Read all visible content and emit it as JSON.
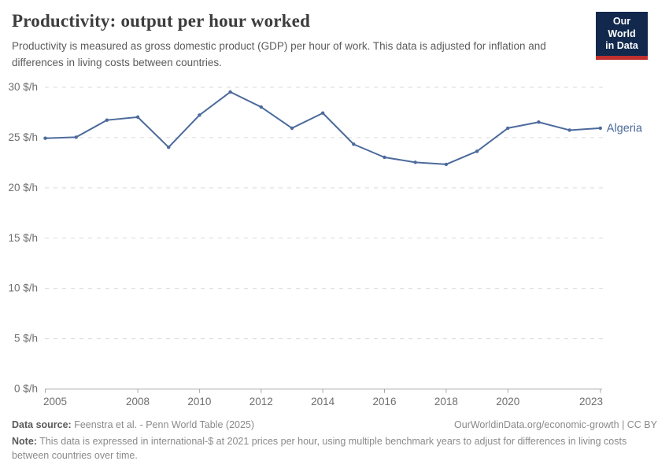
{
  "header": {
    "title": "Productivity: output per hour worked",
    "subtitle": "Productivity is measured as gross domestic product (GDP) per hour of work. This data is adjusted for inflation and differences in living costs between countries.",
    "logo": {
      "line1": "Our World",
      "line2": "in Data"
    }
  },
  "chart_data": {
    "type": "line",
    "title": "Productivity: output per hour worked",
    "x": [
      2005,
      2006,
      2007,
      2008,
      2009,
      2010,
      2011,
      2012,
      2013,
      2014,
      2015,
      2016,
      2017,
      2018,
      2019,
      2020,
      2021,
      2022,
      2023
    ],
    "series": [
      {
        "name": "Algeria",
        "values": [
          24.9,
          25.0,
          26.7,
          27.0,
          24.0,
          27.2,
          29.5,
          28.0,
          25.9,
          27.4,
          24.3,
          23.0,
          22.5,
          22.3,
          23.6,
          25.9,
          26.5,
          25.7,
          25.9
        ]
      }
    ],
    "unit": "$/h",
    "ylim": [
      0,
      30
    ],
    "yticks": [
      0,
      5,
      10,
      15,
      20,
      25,
      30
    ],
    "ytick_suffix": " $/h",
    "xticks": [
      2005,
      2008,
      2010,
      2012,
      2014,
      2016,
      2018,
      2020,
      2023
    ],
    "grid": "horizontal-dashed",
    "legend_position": "end-of-line-label"
  },
  "footer": {
    "datasource_label": "Data source:",
    "datasource_value": " Feenstra et al. - Penn World Table (2025)",
    "link": "OurWorldinData.org/economic-growth | CC BY",
    "note_label": "Note:",
    "note_value": " This data is expressed in international-$ at 2021 prices per hour, using multiple benchmark years to adjust for differences in living costs between countries over time."
  },
  "colors": {
    "line": "#4c6a9c",
    "grid": "#d9d9d9",
    "axis": "#a8a8a8",
    "tick_label": "#6e6e6e",
    "title": "#3d3d3d",
    "subtitle": "#5b5b5b",
    "logo_bg": "#12294d",
    "logo_red": "#c0302d"
  }
}
